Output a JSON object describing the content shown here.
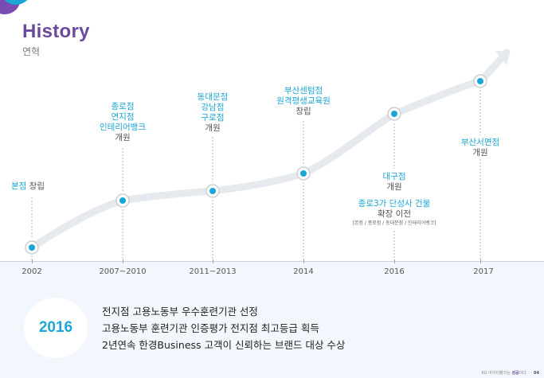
{
  "header": {
    "title": "History",
    "subtitle": "연혁"
  },
  "colors": {
    "accent": "#1aa6d6",
    "title": "#6a4a9e",
    "line": "#e6eaee",
    "band": "#f1f7fc"
  },
  "timeline": {
    "years": [
      "2002",
      "2007~2010",
      "2011~2013",
      "2014",
      "2016",
      "2017"
    ],
    "events": [
      {
        "accent": [
          "본점"
        ],
        "plain_inline": " 창립",
        "plain": []
      },
      {
        "accent": [
          "종로점",
          "연지점",
          "인테리어뱅크"
        ],
        "plain": [
          "개원"
        ]
      },
      {
        "accent": [
          "동대문점",
          "강남점",
          "구로점"
        ],
        "plain": [
          "개원"
        ]
      },
      {
        "accent": [
          "부산센텀점",
          "원격평생교육원"
        ],
        "plain": [
          "창립"
        ]
      },
      {
        "accent": [
          "대구점"
        ],
        "plain": [
          "개원"
        ],
        "extra_accent": "종로3가 단성사 건물",
        "extra_plain": "확장 이전",
        "note": "[본점 / 종로점 / 동대문점 / 인테리어뱅크]"
      },
      {
        "accent": [
          "부산서면점"
        ],
        "plain": [
          "개원"
        ]
      }
    ]
  },
  "highlight": {
    "year": "2016",
    "items": [
      "전지점 고용노동부 우수훈련기관 선정",
      "고용노동부 훈련기관 인증평가 전지점 최고등급 획득",
      "2년연속 한경Business 고객이 신뢰하는 브랜드 대상 수상"
    ]
  },
  "footer": {
    "text": "KG 아이티뱅크는 ",
    "bold": "성공",
    "suffix": "이다.",
    "page": "04"
  }
}
